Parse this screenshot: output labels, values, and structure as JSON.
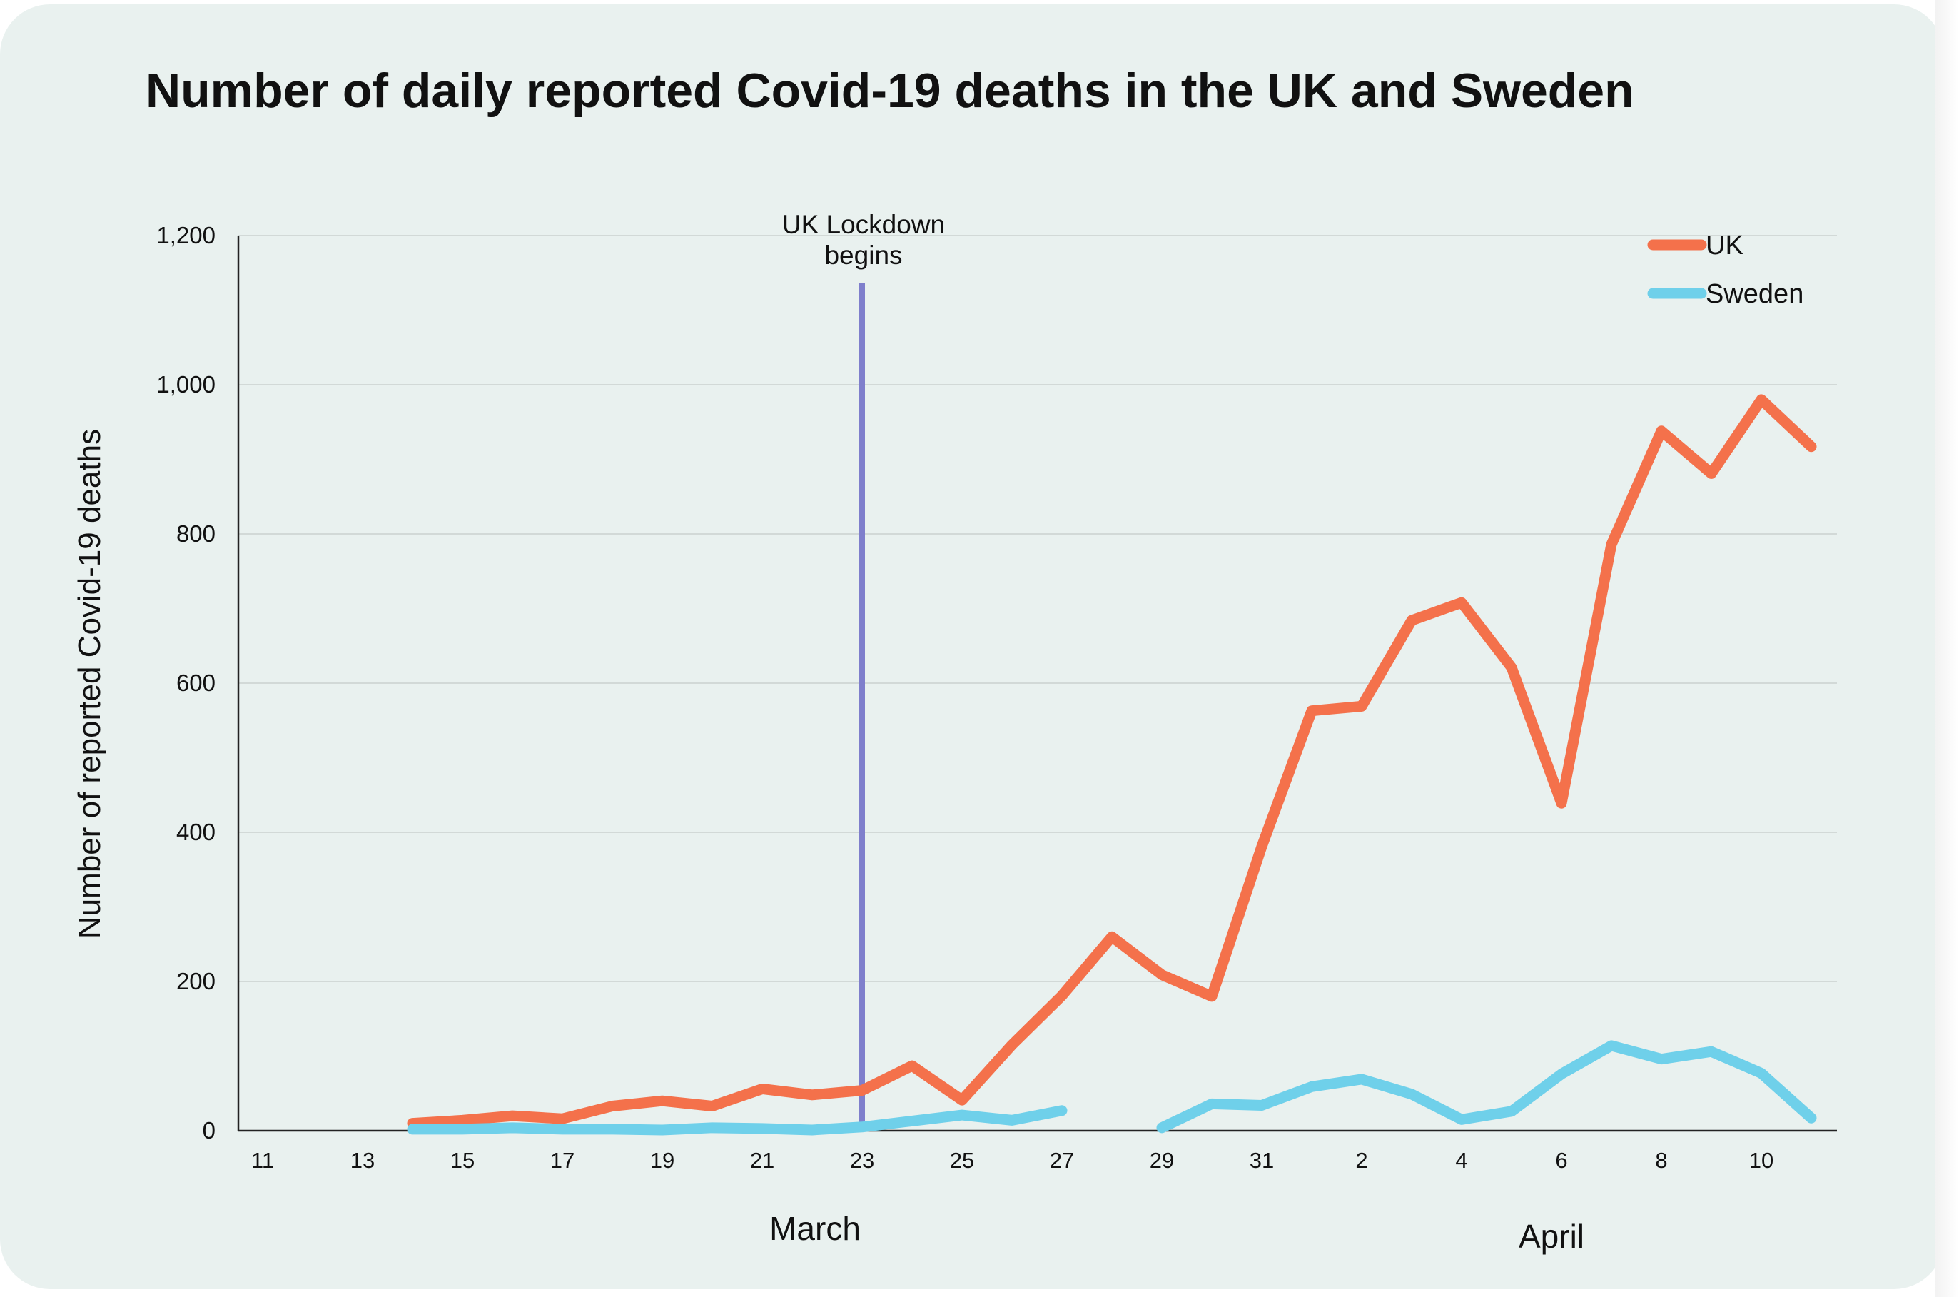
{
  "colors": {
    "uk": "#f4714b",
    "sweden": "#6fd0ea",
    "lockdown": "#7f7fcc",
    "background": "#e9f1ef"
  },
  "chart_data": {
    "type": "line",
    "title": "Number of daily reported Covid-19 deaths in the UK and Sweden",
    "ylabel": "Number of reported Covid-19 deaths",
    "xlabel": "",
    "ylim": [
      0,
      1200
    ],
    "yticks": [
      "0",
      "200",
      "400",
      "600",
      "800",
      "1,000",
      "1,200"
    ],
    "yticks_values": [
      0,
      200,
      400,
      600,
      800,
      1000,
      1200
    ],
    "x_days": [
      "11",
      "12",
      "13",
      "14",
      "15",
      "16",
      "17",
      "18",
      "19",
      "20",
      "21",
      "22",
      "23",
      "24",
      "25",
      "26",
      "27",
      "28",
      "29",
      "30",
      "31",
      "1",
      "2",
      "3",
      "4",
      "5",
      "6",
      "7",
      "8",
      "9",
      "10",
      "11"
    ],
    "xtick_labels": [
      "11",
      "13",
      "15",
      "17",
      "19",
      "21",
      "23",
      "25",
      "27",
      "29",
      "31",
      "2",
      "4",
      "6",
      "8",
      "10"
    ],
    "month_labels": [
      "March",
      "April"
    ],
    "grid": true,
    "legend_position": "top-right",
    "annotation": {
      "label_line1": "UK Lockdown",
      "label_line2": "begins",
      "x_day_index": 12
    },
    "series": [
      {
        "name": "UK",
        "color": "#f4714b",
        "values": [
          null,
          null,
          null,
          10,
          14,
          20,
          16,
          33,
          40,
          33,
          56,
          48,
          54,
          87,
          41,
          115,
          181,
          260,
          209,
          180,
          381,
          563,
          569,
          684,
          708,
          621,
          439,
          786,
          938,
          881,
          980,
          917
        ]
      },
      {
        "name": "Sweden",
        "color": "#6fd0ea",
        "values": [
          null,
          null,
          null,
          2,
          2,
          4,
          2,
          2,
          1,
          4,
          3,
          1,
          5,
          13,
          21,
          14,
          27,
          null,
          4,
          36,
          34,
          59,
          69,
          49,
          15,
          26,
          76,
          114,
          96,
          106,
          77,
          17
        ]
      }
    ]
  }
}
